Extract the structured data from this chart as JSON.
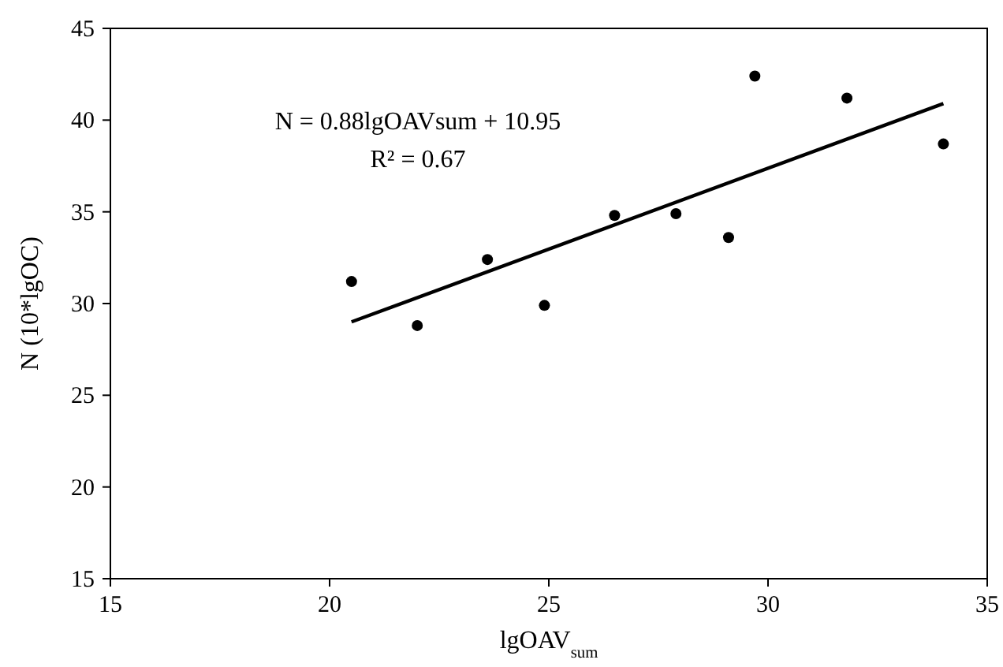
{
  "chart_data": {
    "type": "scatter",
    "xlabel": "lgOAV$_{sum}$",
    "ylabel": "N (10*lgOC)",
    "xlim": [
      15,
      35
    ],
    "xticks": [
      15,
      20,
      25,
      30,
      35
    ],
    "ylim": [
      15,
      45
    ],
    "yticks": [
      15,
      20,
      25,
      30,
      35,
      40,
      45
    ],
    "grid": false,
    "marker": "circle",
    "annotations": [
      "N = 0.88lgOAVsum + 10.95",
      "R² = 0.67"
    ],
    "series": [
      {
        "color": "#000000",
        "x": [
          20.5,
          22.0,
          23.6,
          24.9,
          26.5,
          27.9,
          29.1,
          29.7,
          31.8,
          34.0
        ],
        "values": [
          31.2,
          28.8,
          32.4,
          29.9,
          34.8,
          34.9,
          33.6,
          42.4,
          41.2,
          38.7
        ]
      },
      {
        "type": "line",
        "color": "#000000",
        "line_style": "solid",
        "marker": "none",
        "x": [
          20.5,
          34.0
        ],
        "values": [
          29.0,
          40.9
        ]
      }
    ]
  }
}
